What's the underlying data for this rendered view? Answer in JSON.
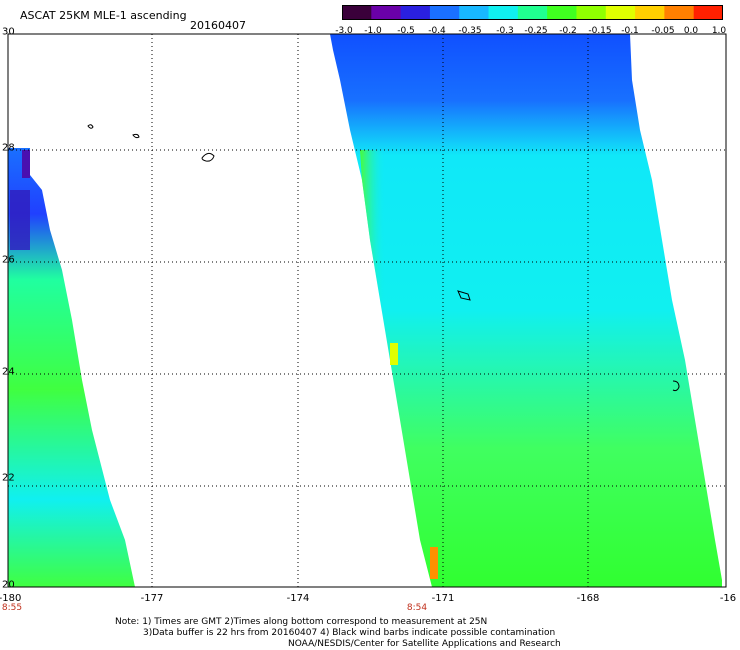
{
  "header": {
    "title": "ASCAT 25KM MLE-1 ascending",
    "date": "20160407"
  },
  "colorbar": {
    "labels": [
      "-3.0",
      "-1.0",
      "-0.5",
      "-0.4",
      "-0.35",
      "-0.3",
      "-0.25",
      "-0.2",
      "-0.15",
      "-0.1",
      "-0.05",
      "0.0",
      "1.0"
    ],
    "colors": [
      "#3a003a",
      "#6a00a8",
      "#2a20e0",
      "#1a70ff",
      "#18b8ff",
      "#10f0f0",
      "#20ff90",
      "#40ff20",
      "#90ff00",
      "#e0ff00",
      "#ffd000",
      "#ff8000",
      "#ff2000"
    ]
  },
  "axes": {
    "lon_labels": [
      "-180",
      "-177",
      "-174",
      "-171",
      "-168",
      "-16"
    ],
    "lat_labels": [
      "30",
      "28",
      "26",
      "24",
      "22",
      "20"
    ],
    "time_labels": [
      "8:55",
      "8:54"
    ]
  },
  "notes": {
    "line1": "Note: 1) Times are GMT 2)Times along bottom correspond to measurement at 25N",
    "line2": "3)Data buffer is 22 hrs from 20160407 4) Black wind barbs indicate possible contamination",
    "line3": "NOAA/NESDIS/Center for Satellite Applications and Research"
  }
}
